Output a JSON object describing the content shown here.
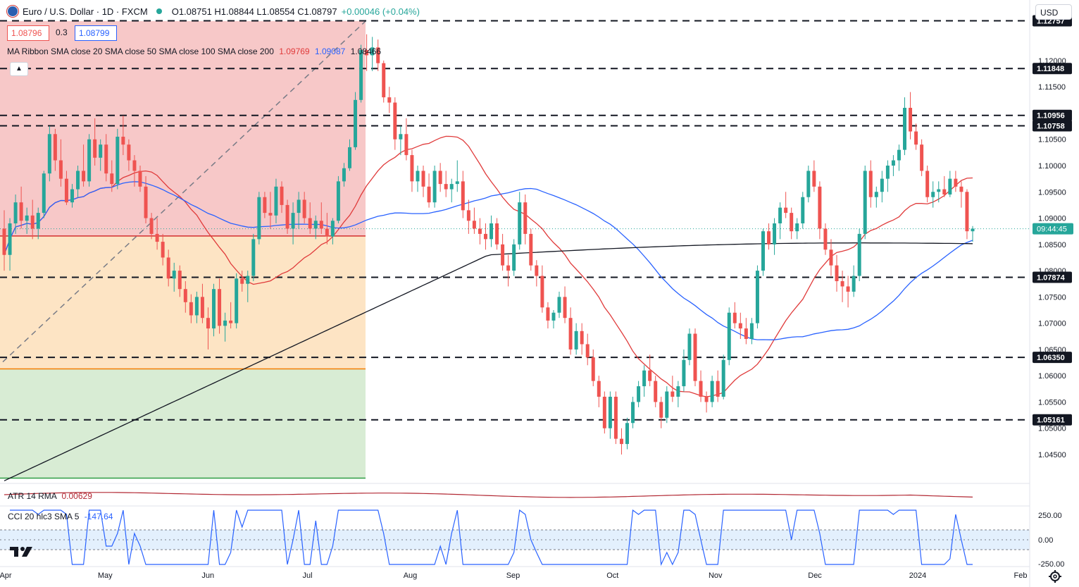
{
  "header": {
    "symbol": "Euro / U.S. Dollar · 1D · FXCM",
    "ohlc": "O1.08751 H1.08844 L1.08554 C1.08797",
    "change": "+0.00046 (+0.04%)",
    "bid": "1.08796",
    "spread": "0.3",
    "ask": "1.08799"
  },
  "indicators": {
    "ma_label": "MA Ribbon SMA close 20 SMA close 50 SMA close 100 SMA close 200",
    "ma20": "1.09769",
    "ma50": "1.09087",
    "ma200": "1.08466",
    "atr_label": "ATR 14 RMA",
    "atr_value": "0.00629",
    "cci_label": "CCI 20 hlc3 SMA 5",
    "cci_value": "-147.64"
  },
  "currency_button": "USD",
  "colors": {
    "up": "#26a69a",
    "down": "#ef5350",
    "sma20": "#e03b3b",
    "sma50": "#2962ff",
    "sma200": "#131722",
    "fib_red": "#f7c8c8",
    "fib_orange": "#fde4c4",
    "fib_green": "#d8ecd4",
    "price_tag": "#26a69a"
  },
  "chart_data": {
    "type": "candlestick",
    "y_axis_ticks": [
      "1.12000",
      "1.11500",
      "1.10500",
      "1.10000",
      "1.09500",
      "1.09000",
      "1.08500",
      "1.08000",
      "1.07500",
      "1.07000",
      "1.06500",
      "1.06000",
      "1.05500",
      "1.05000",
      "1.04500"
    ],
    "ylim": [
      1.0395,
      1.1275
    ],
    "x_axis_labels": [
      {
        "label": "Apr",
        "date": "2023-04-01"
      },
      {
        "label": "May",
        "date": "2023-05-01"
      },
      {
        "label": "Jun",
        "date": "2023-06-01"
      },
      {
        "label": "Jul",
        "date": "2023-07-01"
      },
      {
        "label": "Aug",
        "date": "2023-08-01"
      },
      {
        "label": "Sep",
        "date": "2023-09-01"
      },
      {
        "label": "Oct",
        "date": "2023-10-01"
      },
      {
        "label": "Nov",
        "date": "2023-11-01"
      },
      {
        "label": "Dec",
        "date": "2023-12-01"
      },
      {
        "label": "2024",
        "date": "2024-01-01"
      },
      {
        "label": "Feb",
        "date": "2024-02-01"
      }
    ],
    "horizontal_levels": [
      "1.12757",
      "1.11848",
      "1.10956",
      "1.10758",
      "1.07874",
      "1.06350",
      "1.05161"
    ],
    "current_price": "1.08797",
    "countdown": "09:44:45",
    "fib_levels": [
      1.1275,
      1.0866,
      1.0787,
      1.0613,
      1.0405
    ],
    "cci_ticks": [
      "250.00",
      "0.00",
      "-250.00"
    ],
    "sma_lines": [
      "SMA 20",
      "SMA 50",
      "SMA 200"
    ],
    "candles_approx": [
      [
        1.088,
        1.0915,
        1.08,
        1.083
      ],
      [
        1.083,
        1.09,
        1.08,
        1.089
      ],
      [
        1.089,
        1.0945,
        1.087,
        1.093
      ],
      [
        1.093,
        1.096,
        1.088,
        1.0895
      ],
      [
        1.0895,
        1.092,
        1.087,
        1.0905
      ],
      [
        1.0905,
        1.0935,
        1.086,
        1.088
      ],
      [
        1.088,
        1.092,
        1.086,
        1.091
      ],
      [
        1.091,
        1.099,
        1.09,
        1.0985
      ],
      [
        1.0985,
        1.1075,
        1.097,
        1.106
      ],
      [
        1.106,
        1.107,
        1.099,
        1.101
      ],
      [
        1.101,
        1.105,
        1.096,
        1.0975
      ],
      [
        1.0975,
        1.099,
        1.0925,
        1.093
      ],
      [
        1.093,
        1.0965,
        1.092,
        1.0955
      ],
      [
        1.0955,
        1.1,
        1.094,
        1.099
      ],
      [
        1.099,
        1.104,
        1.096,
        1.097
      ],
      [
        1.097,
        1.106,
        1.096,
        1.105
      ],
      [
        1.105,
        1.109,
        1.1,
        1.1015
      ],
      [
        1.1015,
        1.105,
        1.099,
        1.104
      ],
      [
        1.104,
        1.106,
        1.097,
        1.0985
      ],
      [
        1.0985,
        1.101,
        1.095,
        1.0965
      ],
      [
        1.0965,
        1.107,
        1.0955,
        1.1055
      ],
      [
        1.1055,
        1.1095,
        1.102,
        1.104
      ],
      [
        1.104,
        1.105,
        1.099,
        1.101
      ],
      [
        1.101,
        1.102,
        1.096,
        1.099
      ],
      [
        1.099,
        1.1,
        1.095,
        1.096
      ],
      [
        1.096,
        1.098,
        1.089,
        1.09
      ],
      [
        1.09,
        1.091,
        1.086,
        1.087
      ],
      [
        1.087,
        1.09,
        1.084,
        1.0855
      ],
      [
        1.0855,
        1.087,
        1.081,
        1.0825
      ],
      [
        1.0825,
        1.084,
        1.077,
        1.0785
      ],
      [
        1.0785,
        1.0815,
        1.076,
        1.08
      ],
      [
        1.08,
        1.081,
        1.075,
        1.0765
      ],
      [
        1.0765,
        1.078,
        1.072,
        1.074
      ],
      [
        1.074,
        1.0755,
        1.07,
        1.0715
      ],
      [
        1.0715,
        1.076,
        1.07,
        1.075
      ],
      [
        1.075,
        1.0775,
        1.07,
        1.071
      ],
      [
        1.071,
        1.073,
        1.065,
        1.069
      ],
      [
        1.069,
        1.0775,
        1.0675,
        1.0765
      ],
      [
        1.0765,
        1.0785,
        1.068,
        1.0695
      ],
      [
        1.0695,
        1.072,
        1.0665,
        1.0705
      ],
      [
        1.0705,
        1.074,
        1.069,
        1.07
      ],
      [
        1.07,
        1.0795,
        1.069,
        1.0785
      ],
      [
        1.0785,
        1.08,
        1.076,
        1.0775
      ],
      [
        1.0775,
        1.08,
        1.074,
        1.079
      ],
      [
        1.079,
        1.087,
        1.078,
        1.086
      ],
      [
        1.086,
        1.095,
        1.085,
        1.094
      ],
      [
        1.094,
        1.095,
        1.09,
        1.091
      ],
      [
        1.091,
        1.095,
        1.088,
        1.0905
      ],
      [
        1.0905,
        1.0975,
        1.089,
        1.096
      ],
      [
        1.096,
        1.097,
        1.091,
        1.0925
      ],
      [
        1.0925,
        1.0935,
        1.087,
        1.088
      ],
      [
        1.088,
        1.093,
        1.085,
        1.091
      ],
      [
        1.091,
        1.095,
        1.088,
        1.0935
      ],
      [
        1.0935,
        1.095,
        1.089,
        1.09
      ],
      [
        1.09,
        1.093,
        1.087,
        1.088
      ],
      [
        1.088,
        1.0905,
        1.086,
        1.0895
      ],
      [
        1.0895,
        1.093,
        1.087,
        1.088
      ],
      [
        1.088,
        1.091,
        1.085,
        1.0865
      ],
      [
        1.0865,
        1.09,
        1.085,
        1.0895
      ],
      [
        1.0895,
        1.098,
        1.089,
        1.097
      ],
      [
        1.097,
        1.1005,
        1.096,
        1.0995
      ],
      [
        1.0995,
        1.105,
        1.099,
        1.1035
      ],
      [
        1.1035,
        1.114,
        1.103,
        1.1125
      ],
      [
        1.1125,
        1.123,
        1.112,
        1.122
      ],
      [
        1.122,
        1.125,
        1.118,
        1.121
      ],
      [
        1.121,
        1.1245,
        1.118,
        1.1225
      ],
      [
        1.1225,
        1.124,
        1.118,
        1.1195
      ],
      [
        1.1195,
        1.12,
        1.112,
        1.113
      ],
      [
        1.113,
        1.115,
        1.11,
        1.112
      ],
      [
        1.112,
        1.113,
        1.103,
        1.105
      ],
      [
        1.105,
        1.1075,
        1.102,
        1.106
      ],
      [
        1.106,
        1.109,
        1.101,
        1.102
      ],
      [
        1.102,
        1.103,
        1.095,
        1.097
      ],
      [
        1.097,
        1.1,
        1.095,
        1.099
      ],
      [
        1.099,
        1.1,
        1.094,
        1.096
      ],
      [
        1.096,
        1.0985,
        1.092,
        1.093
      ],
      [
        1.093,
        1.1,
        1.092,
        1.099
      ],
      [
        1.099,
        1.1005,
        1.095,
        1.0965
      ],
      [
        1.0965,
        1.099,
        1.094,
        1.0955
      ],
      [
        1.0955,
        1.0975,
        1.093,
        1.0965
      ],
      [
        1.0965,
        1.101,
        1.095,
        1.097
      ],
      [
        1.097,
        1.099,
        1.09,
        1.0915
      ],
      [
        1.0915,
        1.0935,
        1.087,
        1.0895
      ],
      [
        1.0895,
        1.092,
        1.087,
        1.088
      ],
      [
        1.088,
        1.09,
        1.085,
        1.087
      ],
      [
        1.087,
        1.089,
        1.084,
        1.086
      ],
      [
        1.086,
        1.0905,
        1.0845,
        1.089
      ],
      [
        1.089,
        1.09,
        1.084,
        1.085
      ],
      [
        1.085,
        1.087,
        1.08,
        1.081
      ],
      [
        1.081,
        1.083,
        1.077,
        1.08
      ],
      [
        1.08,
        1.086,
        1.079,
        1.085
      ],
      [
        1.085,
        1.095,
        1.084,
        1.093
      ],
      [
        1.093,
        1.0945,
        1.085,
        1.087
      ],
      [
        1.087,
        1.088,
        1.08,
        1.081
      ],
      [
        1.081,
        1.082,
        1.077,
        1.079
      ],
      [
        1.079,
        1.081,
        1.072,
        1.073
      ],
      [
        1.073,
        1.074,
        1.069,
        1.0705
      ],
      [
        1.0705,
        1.0725,
        1.069,
        1.072
      ],
      [
        1.072,
        1.076,
        1.071,
        1.075
      ],
      [
        1.075,
        1.077,
        1.07,
        1.071
      ],
      [
        1.071,
        1.073,
        1.064,
        1.065
      ],
      [
        1.065,
        1.07,
        1.064,
        1.0685
      ],
      [
        1.0685,
        1.07,
        1.064,
        1.066
      ],
      [
        1.066,
        1.068,
        1.062,
        1.0635
      ],
      [
        1.0635,
        1.065,
        1.058,
        1.059
      ],
      [
        1.059,
        1.06,
        1.054,
        1.056
      ],
      [
        1.056,
        1.057,
        1.049,
        1.05
      ],
      [
        1.05,
        1.057,
        1.048,
        1.056
      ],
      [
        1.056,
        1.057,
        1.047,
        1.048
      ],
      [
        1.048,
        1.05,
        1.045,
        1.047
      ],
      [
        1.047,
        1.052,
        1.046,
        1.051
      ],
      [
        1.051,
        1.056,
        1.05,
        1.055
      ],
      [
        1.055,
        1.059,
        1.054,
        1.058
      ],
      [
        1.058,
        1.062,
        1.056,
        1.061
      ],
      [
        1.061,
        1.064,
        1.058,
        1.059
      ],
      [
        1.059,
        1.06,
        1.054,
        1.055
      ],
      [
        1.055,
        1.056,
        1.05,
        1.052
      ],
      [
        1.052,
        1.058,
        1.051,
        1.057
      ],
      [
        1.057,
        1.06,
        1.055,
        1.056
      ],
      [
        1.056,
        1.059,
        1.054,
        1.058
      ],
      [
        1.058,
        1.065,
        1.057,
        1.063
      ],
      [
        1.063,
        1.069,
        1.062,
        1.068
      ],
      [
        1.068,
        1.069,
        1.058,
        1.059
      ],
      [
        1.059,
        1.061,
        1.055,
        1.056
      ],
      [
        1.056,
        1.057,
        1.053,
        1.055
      ],
      [
        1.055,
        1.06,
        1.054,
        1.059
      ],
      [
        1.059,
        1.061,
        1.055,
        1.056
      ],
      [
        1.056,
        1.064,
        1.0555,
        1.063
      ],
      [
        1.063,
        1.073,
        1.062,
        1.072
      ],
      [
        1.072,
        1.074,
        1.069,
        1.07
      ],
      [
        1.07,
        1.072,
        1.067,
        1.069
      ],
      [
        1.069,
        1.071,
        1.066,
        1.067
      ],
      [
        1.067,
        1.071,
        1.066,
        1.07
      ],
      [
        1.07,
        1.081,
        1.069,
        1.08
      ],
      [
        1.08,
        1.088,
        1.079,
        1.0875
      ],
      [
        1.0875,
        1.089,
        1.084,
        1.085
      ],
      [
        1.085,
        1.09,
        1.083,
        1.089
      ],
      [
        1.089,
        1.093,
        1.086,
        1.092
      ],
      [
        1.092,
        1.095,
        1.09,
        1.091
      ],
      [
        1.091,
        1.092,
        1.086,
        1.0875
      ],
      [
        1.0875,
        1.09,
        1.086,
        1.089
      ],
      [
        1.089,
        1.095,
        1.088,
        1.094
      ],
      [
        1.094,
        1.1,
        1.093,
        1.099
      ],
      [
        1.099,
        1.101,
        1.095,
        1.096
      ],
      [
        1.096,
        1.097,
        1.086,
        1.088
      ],
      [
        1.088,
        1.089,
        1.083,
        1.084
      ],
      [
        1.084,
        1.086,
        1.079,
        1.081
      ],
      [
        1.081,
        1.083,
        1.076,
        1.078
      ],
      [
        1.078,
        1.08,
        1.074,
        1.077
      ],
      [
        1.077,
        1.079,
        1.073,
        1.076
      ],
      [
        1.076,
        1.081,
        1.075,
        1.079
      ],
      [
        1.079,
        1.088,
        1.078,
        1.087
      ],
      [
        1.087,
        1.1,
        1.086,
        1.099
      ],
      [
        1.099,
        1.101,
        1.092,
        1.094
      ],
      [
        1.094,
        1.096,
        1.092,
        1.095
      ],
      [
        1.095,
        1.099,
        1.093,
        1.0975
      ],
      [
        1.0975,
        1.101,
        1.095,
        1.1
      ],
      [
        1.1,
        1.102,
        1.098,
        1.101
      ],
      [
        1.101,
        1.104,
        1.099,
        1.103
      ],
      [
        1.103,
        1.113,
        1.102,
        1.111
      ],
      [
        1.111,
        1.114,
        1.105,
        1.1065
      ],
      [
        1.1065,
        1.108,
        1.103,
        1.104
      ],
      [
        1.104,
        1.105,
        1.098,
        1.099
      ],
      [
        1.099,
        1.1,
        1.093,
        1.094
      ],
      [
        1.094,
        1.097,
        1.092,
        1.095
      ],
      [
        1.095,
        1.097,
        1.093,
        1.0955
      ],
      [
        1.0955,
        1.098,
        1.094,
        1.0945
      ],
      [
        1.0945,
        1.099,
        1.094,
        1.0975
      ],
      [
        1.0975,
        1.099,
        1.095,
        1.096
      ],
      [
        1.096,
        1.097,
        1.092,
        1.095
      ],
      [
        1.095,
        1.0955,
        1.086,
        1.0875
      ],
      [
        1.0875,
        1.0885,
        1.0855,
        1.088
      ]
    ]
  }
}
